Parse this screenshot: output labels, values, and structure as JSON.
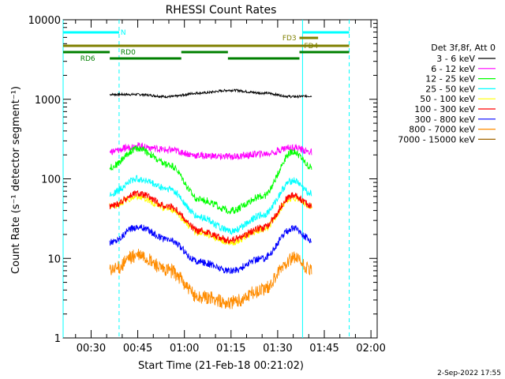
{
  "chart_data": {
    "type": "line",
    "title": "RHESSI Count Rates",
    "xlabel": "Start Time (21-Feb-18 00:21:02)",
    "ylabel": "Count Rate (s⁻¹ detector segment⁻¹)",
    "y_scale": "log",
    "ylim": [
      1,
      10000
    ],
    "xlim": [
      "00:21",
      "02:02"
    ],
    "x_tick_labels": [
      "00:30",
      "00:45",
      "01:00",
      "01:15",
      "01:30",
      "01:45",
      "02:00"
    ],
    "y_tick_labels": [
      "1",
      "10",
      "100",
      "1000",
      "10000"
    ],
    "legend_title": "Det 3f,8f, Att 0",
    "legend_position": "right",
    "series": [
      {
        "name": "3 - 6 keV",
        "color": "#000000",
        "x": [
          "00:36",
          "00:45",
          "00:55",
          "01:05",
          "01:15",
          "01:25",
          "01:35",
          "01:41"
        ],
        "values": [
          1150,
          1150,
          1080,
          1200,
          1300,
          1200,
          1080,
          1100
        ]
      },
      {
        "name": "6 - 12 keV",
        "color": "#ff00ff",
        "x": [
          "00:36",
          "00:45",
          "00:55",
          "01:05",
          "01:15",
          "01:25",
          "01:35",
          "01:41"
        ],
        "values": [
          220,
          260,
          230,
          195,
          190,
          205,
          250,
          215
        ]
      },
      {
        "name": "12 - 25 keV",
        "color": "#00ff00",
        "x": [
          "00:36",
          "00:45",
          "00:55",
          "01:05",
          "01:15",
          "01:25",
          "01:35",
          "01:41"
        ],
        "values": [
          140,
          240,
          150,
          55,
          40,
          60,
          220,
          140
        ]
      },
      {
        "name": "25 - 50 keV",
        "color": "#00ffff",
        "x": [
          "00:36",
          "00:45",
          "00:55",
          "01:05",
          "01:15",
          "01:25",
          "01:35",
          "01:41"
        ],
        "values": [
          65,
          100,
          75,
          33,
          22,
          35,
          95,
          65
        ]
      },
      {
        "name": "50 - 100 keV",
        "color": "#ffff00",
        "x": [
          "00:36",
          "00:45",
          "00:55",
          "01:05",
          "01:15",
          "01:25",
          "01:35",
          "01:41"
        ],
        "values": [
          45,
          60,
          42,
          21,
          16,
          23,
          58,
          45
        ]
      },
      {
        "name": "100 - 300 keV",
        "color": "#ff0000",
        "x": [
          "00:36",
          "00:45",
          "00:55",
          "01:05",
          "01:15",
          "01:25",
          "01:35",
          "01:41"
        ],
        "values": [
          45,
          65,
          45,
          22,
          17,
          24,
          62,
          46
        ]
      },
      {
        "name": "300 - 800 keV",
        "color": "#0000ff",
        "x": [
          "00:36",
          "00:45",
          "00:55",
          "01:05",
          "01:15",
          "01:25",
          "01:35",
          "01:41"
        ],
        "values": [
          16,
          25,
          17,
          9,
          7,
          10,
          24,
          17
        ]
      },
      {
        "name": "800 - 7000 keV",
        "color": "#ff8c00",
        "x": [
          "00:36",
          "00:45",
          "00:55",
          "01:05",
          "01:15",
          "01:25",
          "01:35",
          "01:41"
        ],
        "values": [
          7,
          11,
          7,
          3.3,
          2.8,
          4,
          10,
          7
        ]
      },
      {
        "name": "7000 - 15000 keV",
        "color": "#a06400",
        "x": [],
        "values": []
      }
    ],
    "intervals": [
      {
        "label": "N",
        "color": "#00ffff",
        "segments": [
          [
            "00:21",
            "00:39"
          ],
          [
            "01:38",
            "01:53"
          ]
        ],
        "label_at": "00:39"
      },
      {
        "label": "FD3",
        "color": "#808000",
        "segments": [
          [
            "01:37",
            "01:43"
          ]
        ],
        "label_at": "01:31"
      },
      {
        "label": "FD4",
        "color": "#808000",
        "segments": [
          [
            "00:21",
            "01:53"
          ]
        ],
        "label_at": "01:38"
      },
      {
        "label": "RD0",
        "color": "#008000",
        "segments": [
          [
            "00:21",
            "00:36"
          ],
          [
            "00:59",
            "01:14"
          ],
          [
            "01:37",
            "01:53"
          ]
        ],
        "label_at": "00:39"
      },
      {
        "label": "RD6",
        "color": "#008000",
        "segments": [
          [
            "00:36",
            "00:59"
          ],
          [
            "01:14",
            "01:37"
          ]
        ],
        "label_at": "00:26"
      }
    ],
    "vertical_lines": [
      {
        "x": "00:21",
        "color": "#00ffff",
        "style": "solid"
      },
      {
        "x": "00:39",
        "color": "#00ffff",
        "style": "dashed"
      },
      {
        "x": "01:38",
        "color": "#00ffff",
        "style": "solid"
      },
      {
        "x": "01:53",
        "color": "#00ffff",
        "style": "dashed"
      }
    ],
    "grid": false
  },
  "footer": {
    "date_stamp": "2-Sep-2022 17:55"
  }
}
